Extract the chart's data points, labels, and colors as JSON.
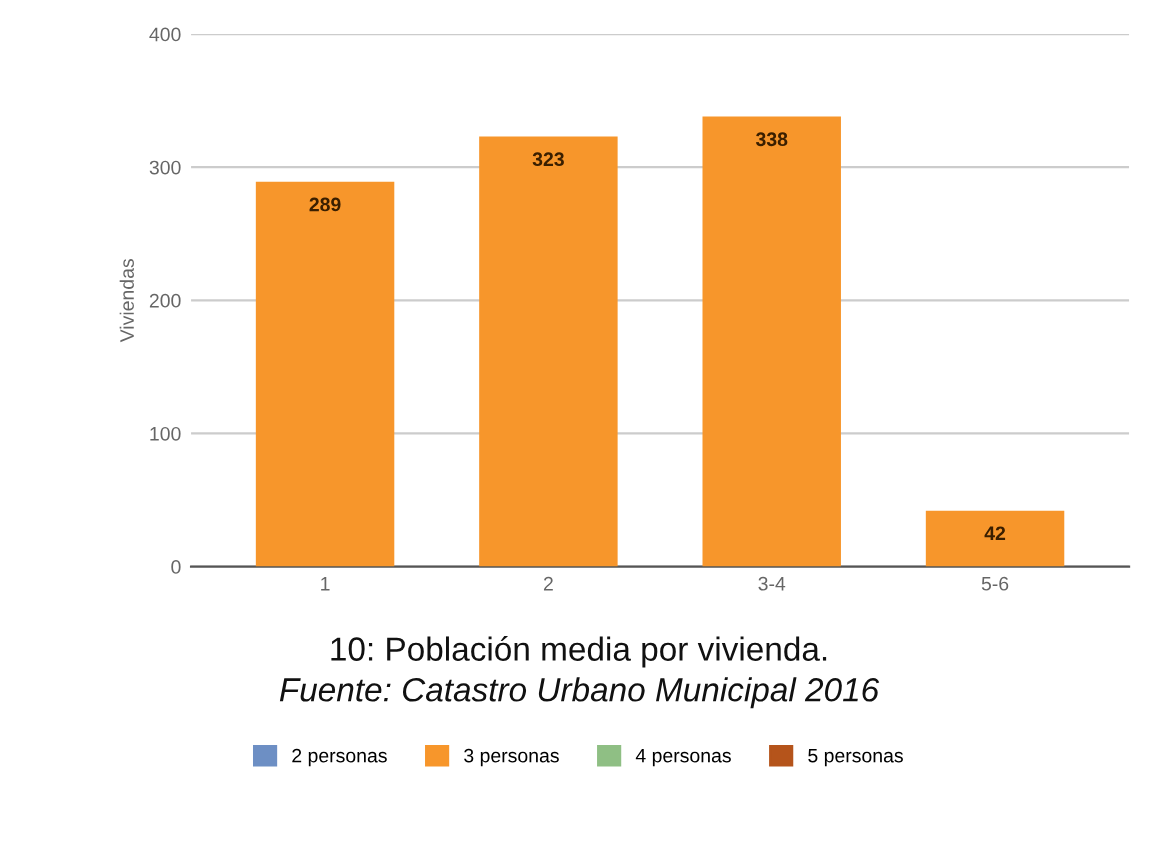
{
  "chart_data": {
    "type": "bar",
    "ylabel": "Viviendas",
    "categories": [
      "1",
      "2",
      "3-4",
      "5-6"
    ],
    "series": [
      {
        "name": "2 personas",
        "color": "#6d8fc4",
        "values": [
          null,
          null,
          null,
          null
        ]
      },
      {
        "name": "3 personas",
        "color": "#f7962b",
        "values": [
          289,
          323,
          338,
          42
        ]
      },
      {
        "name": "4 personas",
        "color": "#8fbf84",
        "values": [
          null,
          null,
          null,
          null
        ]
      },
      {
        "name": "5 personas",
        "color": "#b5541b",
        "values": [
          null,
          null,
          null,
          null
        ]
      }
    ],
    "ylim": [
      0,
      400
    ],
    "yticks": [
      0,
      100,
      200,
      300,
      400
    ],
    "grid": "y",
    "legend": "bottom",
    "data_labels": true,
    "annotations": [
      "10: Población media por vivienda.",
      "Fuente: Catastro Urbano Municipal 2016"
    ]
  }
}
